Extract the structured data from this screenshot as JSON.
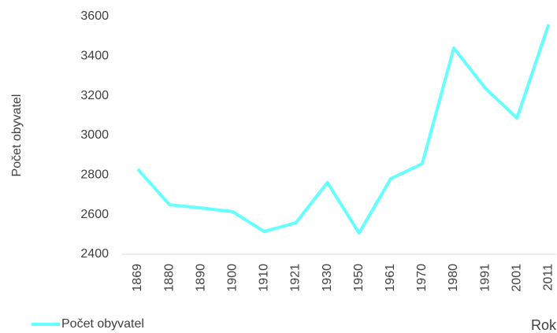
{
  "chart_data": {
    "type": "line",
    "x_label": "Rok",
    "y_label": "Počet obyvatel",
    "categories": [
      "1869",
      "1880",
      "1890",
      "1900",
      "1910",
      "1921",
      "1930",
      "1950",
      "1961",
      "1970",
      "1980",
      "1991",
      "2001",
      "2011"
    ],
    "series": [
      {
        "name": "Počet obyvatel",
        "color": "#66ffff",
        "values": [
          2829,
          2650,
          2634,
          2615,
          2515,
          2559,
          2762,
          2507,
          2781,
          2857,
          3441,
          3238,
          3087,
          3560
        ]
      }
    ],
    "ylim": [
      2400,
      3600
    ],
    "yticks": [
      2400,
      2600,
      2800,
      3000,
      3200,
      3400,
      3600
    ],
    "grid": false,
    "legend": "bottom-left"
  }
}
